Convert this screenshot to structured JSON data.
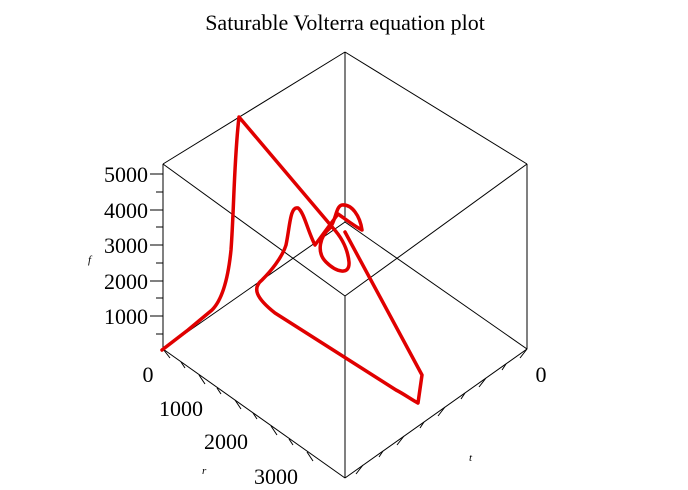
{
  "chart_data": {
    "type": "line",
    "title": "Saturable  Volterra  equation plot",
    "axes": {
      "f": {
        "label": "f",
        "ticks": [
          "1000",
          "2000",
          "3000",
          "4000",
          "5000"
        ]
      },
      "r": {
        "label": "r",
        "ticks": [
          "0",
          "1000",
          "2000",
          "3000"
        ]
      },
      "t": {
        "label": "t",
        "ticks": [
          "0"
        ]
      }
    },
    "series": [
      {
        "color": "#e00000",
        "description": "trajectory spiraling from origin to a fixed point"
      }
    ],
    "grid": false,
    "legend": "none",
    "style": {
      "line_color": "#e00000"
    }
  }
}
